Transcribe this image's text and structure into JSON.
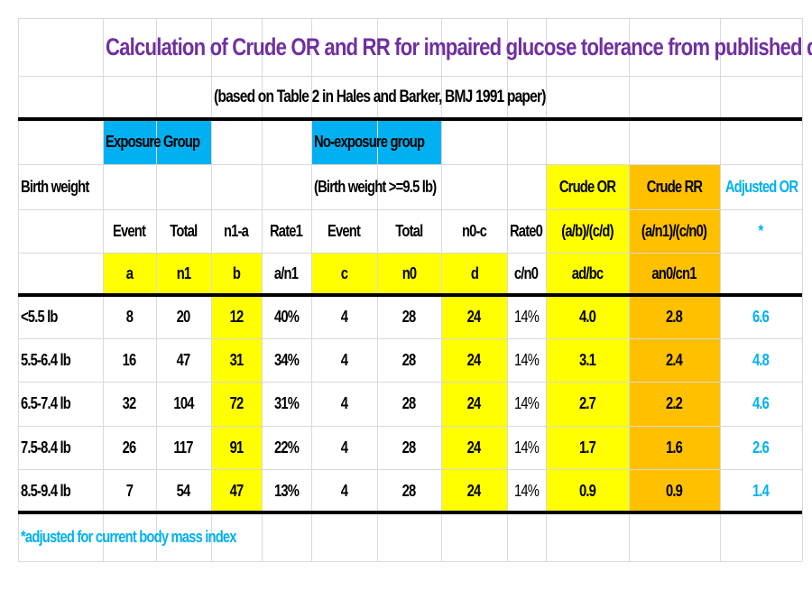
{
  "title": "Calculation of Crude OR and RR for impaired glucose tolerance from published data",
  "subtitle": "(based on  Table 2 in Hales and Barker, BMJ 1991 paper)",
  "headers": {
    "exposure_group": "Exposure Group",
    "no_exposure_group": "No-exposure group",
    "birth_weight": "Birth weight",
    "reference_note": "(Birth weight >=9.5 lb)",
    "crude_or": "Crude OR",
    "crude_rr": "Crude RR",
    "adjusted_or": "Adjusted OR",
    "row3": [
      "Event",
      "Total",
      "n1-a",
      "Rate1",
      "Event",
      "Total",
      "n0-c",
      "Rate0",
      "(a/b)/(c/d)",
      "(a/n1)/(c/n0)",
      "*"
    ],
    "row4": [
      "a",
      "n1",
      "b",
      "a/n1",
      "c",
      "n0",
      "d",
      "c/n0",
      "ad/bc",
      "an0/cn1",
      ""
    ]
  },
  "rows": [
    {
      "group": "<5.5 lb",
      "a": "8",
      "n1": "20",
      "b": "12",
      "rate1": "40%",
      "c": "4",
      "n0": "28",
      "d": "24",
      "rate0": "14%",
      "or": "4.0",
      "rr": "2.8",
      "adj": "6.6"
    },
    {
      "group": "5.5-6.4 lb",
      "a": "16",
      "n1": "47",
      "b": "31",
      "rate1": "34%",
      "c": "4",
      "n0": "28",
      "d": "24",
      "rate0": "14%",
      "or": "3.1",
      "rr": "2.4",
      "adj": "4.8"
    },
    {
      "group": "6.5-7.4 lb",
      "a": "32",
      "n1": "104",
      "b": "72",
      "rate1": "31%",
      "c": "4",
      "n0": "28",
      "d": "24",
      "rate0": "14%",
      "or": "2.7",
      "rr": "2.2",
      "adj": "4.6"
    },
    {
      "group": "7.5-8.4 lb",
      "a": "26",
      "n1": "117",
      "b": "91",
      "rate1": "22%",
      "c": "4",
      "n0": "28",
      "d": "24",
      "rate0": "14%",
      "or": "1.7",
      "rr": "1.6",
      "adj": "2.6"
    },
    {
      "group": "8.5-9.4 lb",
      "a": "7",
      "n1": "54",
      "b": "47",
      "rate1": "13%",
      "c": "4",
      "n0": "28",
      "d": "24",
      "rate0": "14%",
      "or": "0.9",
      "rr": "0.9",
      "adj": "1.4"
    }
  ],
  "footnote": "*adjusted for current body mass index",
  "colors": {
    "title": "#7030a0",
    "header_blue": "#00b0f0",
    "highlight_yellow": "#ffff00",
    "highlight_orange": "#ffc000",
    "adjusted_text": "#00b0f0"
  }
}
